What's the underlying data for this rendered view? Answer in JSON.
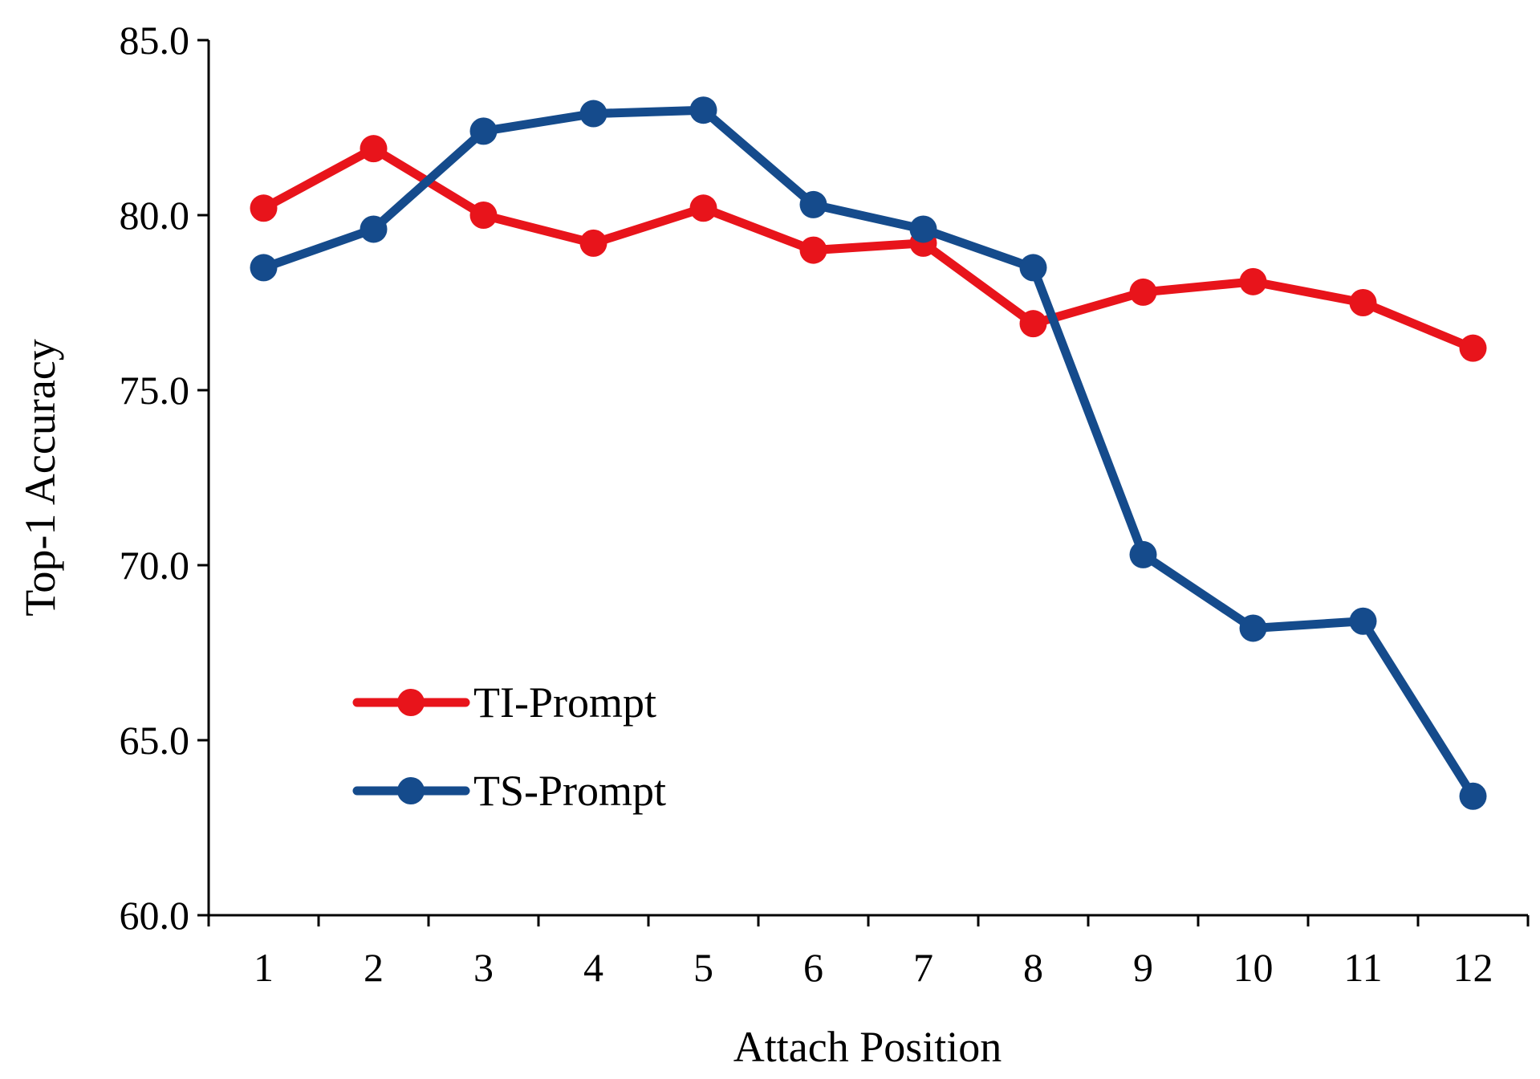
{
  "chart_data": {
    "type": "line",
    "title": "",
    "xlabel": "Attach Position",
    "ylabel": "Top-1 Accuracy",
    "categories": [
      "1",
      "2",
      "3",
      "4",
      "5",
      "6",
      "7",
      "8",
      "9",
      "10",
      "11",
      "12"
    ],
    "ylim": [
      60.0,
      85.0
    ],
    "yticks": [
      "60.0",
      "65.0",
      "70.0",
      "75.0",
      "80.0",
      "85.0"
    ],
    "grid": false,
    "legend_position": "lower-left",
    "series": [
      {
        "name": "TI-Prompt",
        "color": "#e8141b",
        "marker": "circle",
        "values": [
          80.2,
          81.9,
          80.0,
          79.2,
          80.2,
          79.0,
          79.2,
          76.9,
          77.8,
          78.1,
          77.5,
          76.2
        ]
      },
      {
        "name": "TS-Prompt",
        "color": "#154b8c",
        "marker": "circle",
        "values": [
          78.5,
          79.6,
          82.4,
          82.9,
          83.0,
          80.3,
          79.6,
          78.5,
          70.3,
          68.2,
          68.4,
          63.4
        ]
      }
    ]
  }
}
